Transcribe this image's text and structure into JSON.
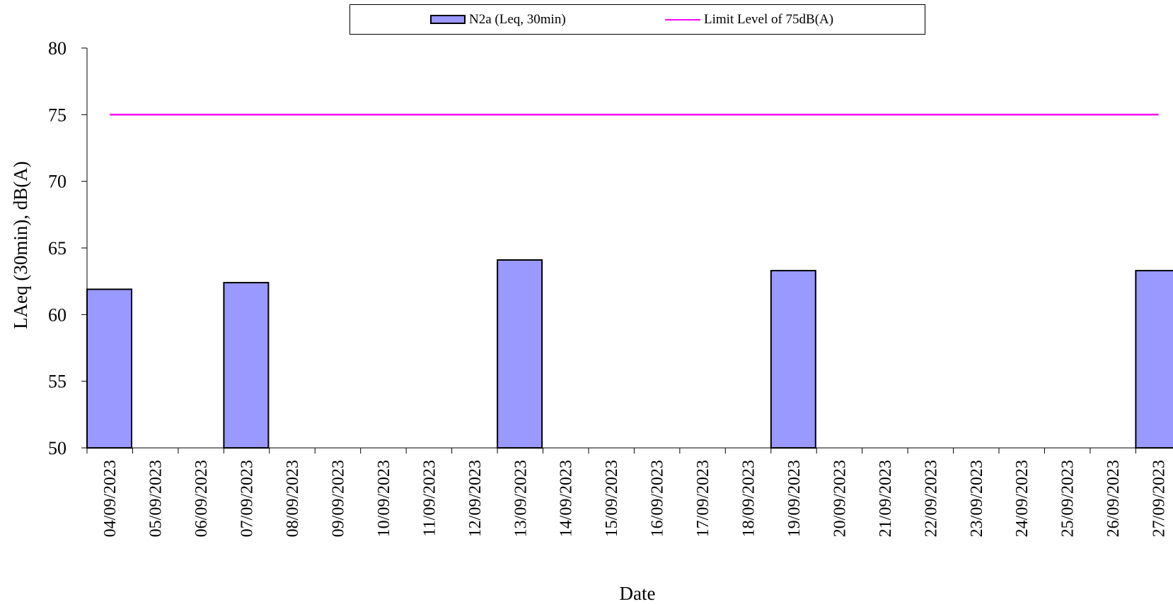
{
  "chart_data": {
    "type": "bar",
    "title": "",
    "xlabel": "Date",
    "ylabel": "LAeq (30min), dB(A)",
    "ylim": [
      50,
      80
    ],
    "yticks": [
      "50",
      "55",
      "60",
      "65",
      "70",
      "75",
      "80"
    ],
    "grid": false,
    "legend_position": "top",
    "categories": [
      "04/09/2023",
      "05/09/2023",
      "06/09/2023",
      "07/09/2023",
      "08/09/2023",
      "09/09/2023",
      "10/09/2023",
      "11/09/2023",
      "12/09/2023",
      "13/09/2023",
      "14/09/2023",
      "15/09/2023",
      "16/09/2023",
      "17/09/2023",
      "18/09/2023",
      "19/09/2023",
      "20/09/2023",
      "21/09/2023",
      "22/09/2023",
      "23/09/2023",
      "24/09/2023",
      "25/09/2023",
      "26/09/2023",
      "27/09/2023"
    ],
    "series": [
      {
        "name": "N2a (Leq, 30min)",
        "kind": "bar",
        "color": "#9999ff",
        "values": [
          61.9,
          null,
          null,
          62.4,
          null,
          null,
          null,
          null,
          null,
          64.1,
          null,
          null,
          null,
          null,
          null,
          63.3,
          null,
          null,
          null,
          null,
          null,
          null,
          null,
          63.3
        ]
      },
      {
        "name": "Limit Level of 75dB(A)",
        "kind": "line",
        "color": "#ff00ff",
        "values": [
          75,
          75,
          75,
          75,
          75,
          75,
          75,
          75,
          75,
          75,
          75,
          75,
          75,
          75,
          75,
          75,
          75,
          75,
          75,
          75,
          75,
          75,
          75,
          75
        ]
      }
    ]
  }
}
